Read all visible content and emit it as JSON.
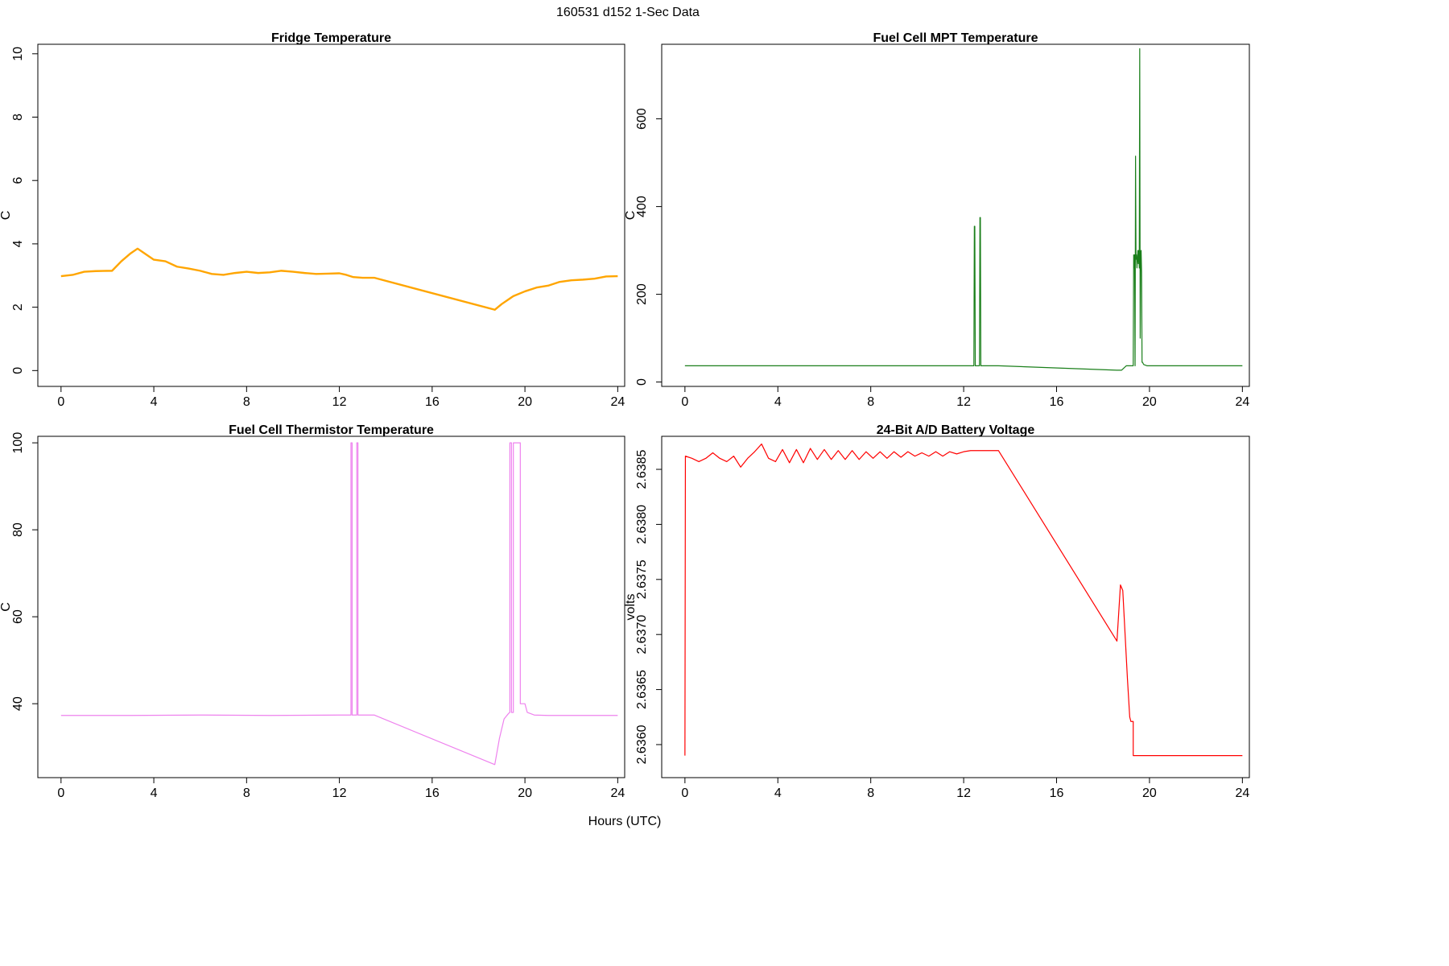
{
  "page": {
    "supertitle": "160531   d152   1-Sec Data",
    "xlabel": "Hours (UTC)"
  },
  "chart_data": [
    {
      "id": "fridge",
      "type": "line",
      "title": "Fridge Temperature",
      "ylabel": "C",
      "xlim": [
        -1,
        24.3
      ],
      "ylim": [
        -0.5,
        10.3
      ],
      "xticks": [
        0,
        4,
        8,
        12,
        16,
        20,
        24
      ],
      "yticks": [
        0,
        2,
        4,
        6,
        8,
        10
      ],
      "color": "#FFA500",
      "series": [
        {
          "x": [
            0,
            0.5,
            1,
            1.5,
            2.2,
            2.6,
            3,
            3.3,
            3.6,
            4,
            4.5,
            5,
            5.5,
            6,
            6.5,
            7,
            7.5,
            8,
            8.5,
            9,
            9.5,
            10,
            10.5,
            11,
            11.5,
            12,
            12.3,
            12.6,
            13,
            13.5,
            18.7,
            19,
            19.5,
            20,
            20.5,
            21,
            21.5,
            22,
            22.5,
            23,
            23.5,
            24
          ],
          "y": [
            2.98,
            3.02,
            3.12,
            3.14,
            3.15,
            3.45,
            3.7,
            3.85,
            3.7,
            3.5,
            3.45,
            3.28,
            3.22,
            3.15,
            3.05,
            3.02,
            3.08,
            3.12,
            3.08,
            3.1,
            3.15,
            3.12,
            3.08,
            3.05,
            3.06,
            3.07,
            3.02,
            2.95,
            2.93,
            2.93,
            1.92,
            2.1,
            2.35,
            2.5,
            2.62,
            2.68,
            2.8,
            2.85,
            2.87,
            2.9,
            2.97,
            2.98
          ]
        }
      ]
    },
    {
      "id": "fuelcell-mpt",
      "type": "line",
      "title": "Fuel Cell MPT Temperature",
      "ylabel": "C",
      "xlim": [
        -1,
        24.3
      ],
      "ylim": [
        -10,
        770
      ],
      "xticks": [
        0,
        4,
        8,
        12,
        16,
        20,
        24
      ],
      "yticks": [
        0,
        200,
        400,
        600
      ],
      "color": "#1A7F1A",
      "series": [
        {
          "x": [
            0,
            12.44,
            12.46,
            12.48,
            12.5,
            12.68,
            12.7,
            12.72,
            12.74,
            13.5,
            18.6,
            18.8,
            19.0,
            19.25,
            19.3,
            19.32,
            19.34,
            19.36,
            19.38,
            19.4,
            19.42,
            19.44,
            19.46,
            19.5,
            19.52,
            19.54,
            19.56,
            19.58,
            19.6,
            19.62,
            19.64,
            19.66,
            19.68,
            19.7,
            19.75,
            19.9,
            24
          ],
          "y": [
            37,
            37,
            355,
            355,
            37,
            37,
            375,
            375,
            37,
            37,
            27,
            27,
            37,
            37,
            37,
            290,
            260,
            290,
            37,
            515,
            280,
            290,
            260,
            300,
            270,
            300,
            260,
            760,
            100,
            290,
            300,
            250,
            45,
            45,
            40,
            37,
            37
          ]
        }
      ]
    },
    {
      "id": "fuelcell-thermistor",
      "type": "line",
      "title": "Fuel Cell Thermistor Temperature",
      "ylabel": "C",
      "xlim": [
        -1,
        24.3
      ],
      "ylim": [
        23,
        101.5
      ],
      "xticks": [
        0,
        4,
        8,
        12,
        16,
        20,
        24
      ],
      "yticks": [
        40,
        60,
        80,
        100
      ],
      "color": "#EE82EE",
      "series": [
        {
          "x": [
            0,
            3,
            6,
            9,
            12,
            12.5,
            12.5,
            12.55,
            12.55,
            12.75,
            12.75,
            12.8,
            12.8,
            13.5,
            18.7,
            18.9,
            19.1,
            19.3,
            19.35,
            19.35,
            19.42,
            19.42,
            19.5,
            19.5,
            19.8,
            19.8,
            20.0,
            20.1,
            20.4,
            21,
            22,
            23,
            24
          ],
          "y": [
            37.3,
            37.3,
            37.4,
            37.3,
            37.4,
            37.4,
            100,
            100,
            37.4,
            37.4,
            100,
            100,
            37.4,
            37.4,
            26,
            32,
            36.5,
            37.8,
            38,
            100,
            100,
            38,
            38,
            100,
            100,
            40,
            40,
            38,
            37.4,
            37.3,
            37.3,
            37.3,
            37.3
          ]
        }
      ]
    },
    {
      "id": "battery-voltage",
      "type": "line",
      "title": "24-Bit A/D Battery Voltage",
      "ylabel": "volts",
      "xlim": [
        -1,
        24.3
      ],
      "ylim": [
        2.6357,
        2.6388
      ],
      "xticks": [
        0,
        4,
        8,
        12,
        16,
        20,
        24
      ],
      "yticks": [
        2.636,
        2.6365,
        2.637,
        2.6375,
        2.638,
        2.6385
      ],
      "ytick_labels": [
        "2.6360",
        "2.6365",
        "2.6370",
        "2.6375",
        "2.6380",
        "2.6385"
      ],
      "color": "#FF0000",
      "series": [
        {
          "x": [
            0,
            0.02,
            0.3,
            0.6,
            0.9,
            1.2,
            1.5,
            1.8,
            2.1,
            2.4,
            2.7,
            3.0,
            3.3,
            3.6,
            3.9,
            4.2,
            4.5,
            4.8,
            5.1,
            5.4,
            5.7,
            6.0,
            6.3,
            6.6,
            6.9,
            7.2,
            7.5,
            7.8,
            8.1,
            8.4,
            8.7,
            9.0,
            9.3,
            9.6,
            9.9,
            10.2,
            10.5,
            10.8,
            11.1,
            11.4,
            11.7,
            12.0,
            12.3,
            13.5,
            18.6,
            18.75,
            18.85,
            18.95,
            19.05,
            19.15,
            19.2,
            19.3,
            19.3,
            19.35,
            19.4,
            19.45,
            24
          ],
          "y": [
            2.6359,
            2.63862,
            2.6386,
            2.63857,
            2.6386,
            2.63865,
            2.6386,
            2.63857,
            2.63862,
            2.63852,
            2.6386,
            2.63866,
            2.63873,
            2.6386,
            2.63857,
            2.63868,
            2.63856,
            2.63868,
            2.63856,
            2.63869,
            2.63859,
            2.63868,
            2.63859,
            2.63867,
            2.63859,
            2.63867,
            2.63859,
            2.63866,
            2.6386,
            2.63866,
            2.6386,
            2.63866,
            2.63861,
            2.63866,
            2.63862,
            2.63865,
            2.63862,
            2.63866,
            2.63862,
            2.63866,
            2.63864,
            2.63866,
            2.63867,
            2.63867,
            2.63694,
            2.63745,
            2.6374,
            2.637,
            2.6366,
            2.63625,
            2.63621,
            2.63621,
            2.6359,
            2.6359,
            2.6359,
            2.6359,
            2.6359
          ]
        }
      ]
    }
  ]
}
